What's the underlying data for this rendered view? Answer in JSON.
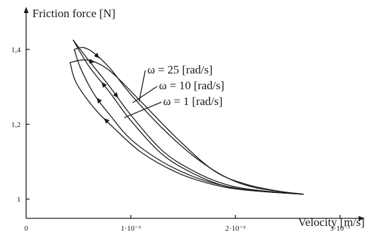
{
  "chart_data": {
    "type": "line",
    "ylabel": "Friction force [N]",
    "xlabel": "Velocity [m/s]",
    "xlim": [
      0,
      0.003
    ],
    "ylim": [
      0.93,
      1.5
    ],
    "x_ticks": [
      {
        "value": 0,
        "label": "0"
      },
      {
        "value": 0.001,
        "label": "1·10⁻³"
      },
      {
        "value": 0.002,
        "label": "2·10⁻³"
      },
      {
        "value": 0.003,
        "label": "3·10⁻³"
      }
    ],
    "y_ticks": [
      {
        "value": 1.0,
        "label": "1"
      },
      {
        "value": 1.2,
        "label": "1,2"
      },
      {
        "value": 1.4,
        "label": "1,4"
      }
    ],
    "series": [
      {
        "name": "ω = 25 [rad/s]",
        "upper": [
          [
            0.00042,
            1.365
          ],
          [
            0.00054,
            1.372
          ],
          [
            0.00066,
            1.366
          ],
          [
            0.00082,
            1.338
          ],
          [
            0.0011,
            1.26
          ],
          [
            0.00145,
            1.16
          ],
          [
            0.0018,
            1.075
          ],
          [
            0.0021,
            1.04
          ],
          [
            0.0024,
            1.022
          ],
          [
            0.00265,
            1.013
          ]
        ],
        "lower": [
          [
            0.00265,
            1.013
          ],
          [
            0.0024,
            1.018
          ],
          [
            0.0021,
            1.024
          ],
          [
            0.0018,
            1.038
          ],
          [
            0.00145,
            1.07
          ],
          [
            0.0011,
            1.125
          ],
          [
            0.00082,
            1.195
          ],
          [
            0.00066,
            1.24
          ],
          [
            0.00048,
            1.31
          ],
          [
            0.00042,
            1.365
          ]
        ]
      },
      {
        "name": "ω = 10 [rad/s]",
        "upper": [
          [
            0.00046,
            1.4
          ],
          [
            0.00055,
            1.405
          ],
          [
            0.00065,
            1.39
          ],
          [
            0.0008,
            1.35
          ],
          [
            0.001,
            1.28
          ],
          [
            0.0013,
            1.19
          ],
          [
            0.0016,
            1.115
          ],
          [
            0.0019,
            1.06
          ],
          [
            0.0022,
            1.03
          ],
          [
            0.00265,
            1.013
          ]
        ],
        "lower": [
          [
            0.00265,
            1.013
          ],
          [
            0.0022,
            1.022
          ],
          [
            0.0019,
            1.035
          ],
          [
            0.0016,
            1.06
          ],
          [
            0.0013,
            1.1
          ],
          [
            0.001,
            1.16
          ],
          [
            0.0008,
            1.225
          ],
          [
            0.00065,
            1.28
          ],
          [
            0.00052,
            1.35
          ],
          [
            0.00046,
            1.4
          ]
        ]
      },
      {
        "name": "ω = 1 [rad/s]",
        "upper": [
          [
            0.00045,
            1.425
          ],
          [
            0.0006,
            1.37
          ],
          [
            0.0008,
            1.3
          ],
          [
            0.001,
            1.225
          ],
          [
            0.0013,
            1.13
          ],
          [
            0.0016,
            1.075
          ],
          [
            0.0019,
            1.04
          ],
          [
            0.0022,
            1.024
          ],
          [
            0.00265,
            1.013
          ]
        ],
        "lower": [
          [
            0.00265,
            1.013
          ],
          [
            0.0022,
            1.022
          ],
          [
            0.0019,
            1.035
          ],
          [
            0.0016,
            1.068
          ],
          [
            0.0013,
            1.12
          ],
          [
            0.001,
            1.21
          ],
          [
            0.0008,
            1.285
          ],
          [
            0.0006,
            1.355
          ],
          [
            0.00045,
            1.425
          ]
        ]
      }
    ]
  }
}
